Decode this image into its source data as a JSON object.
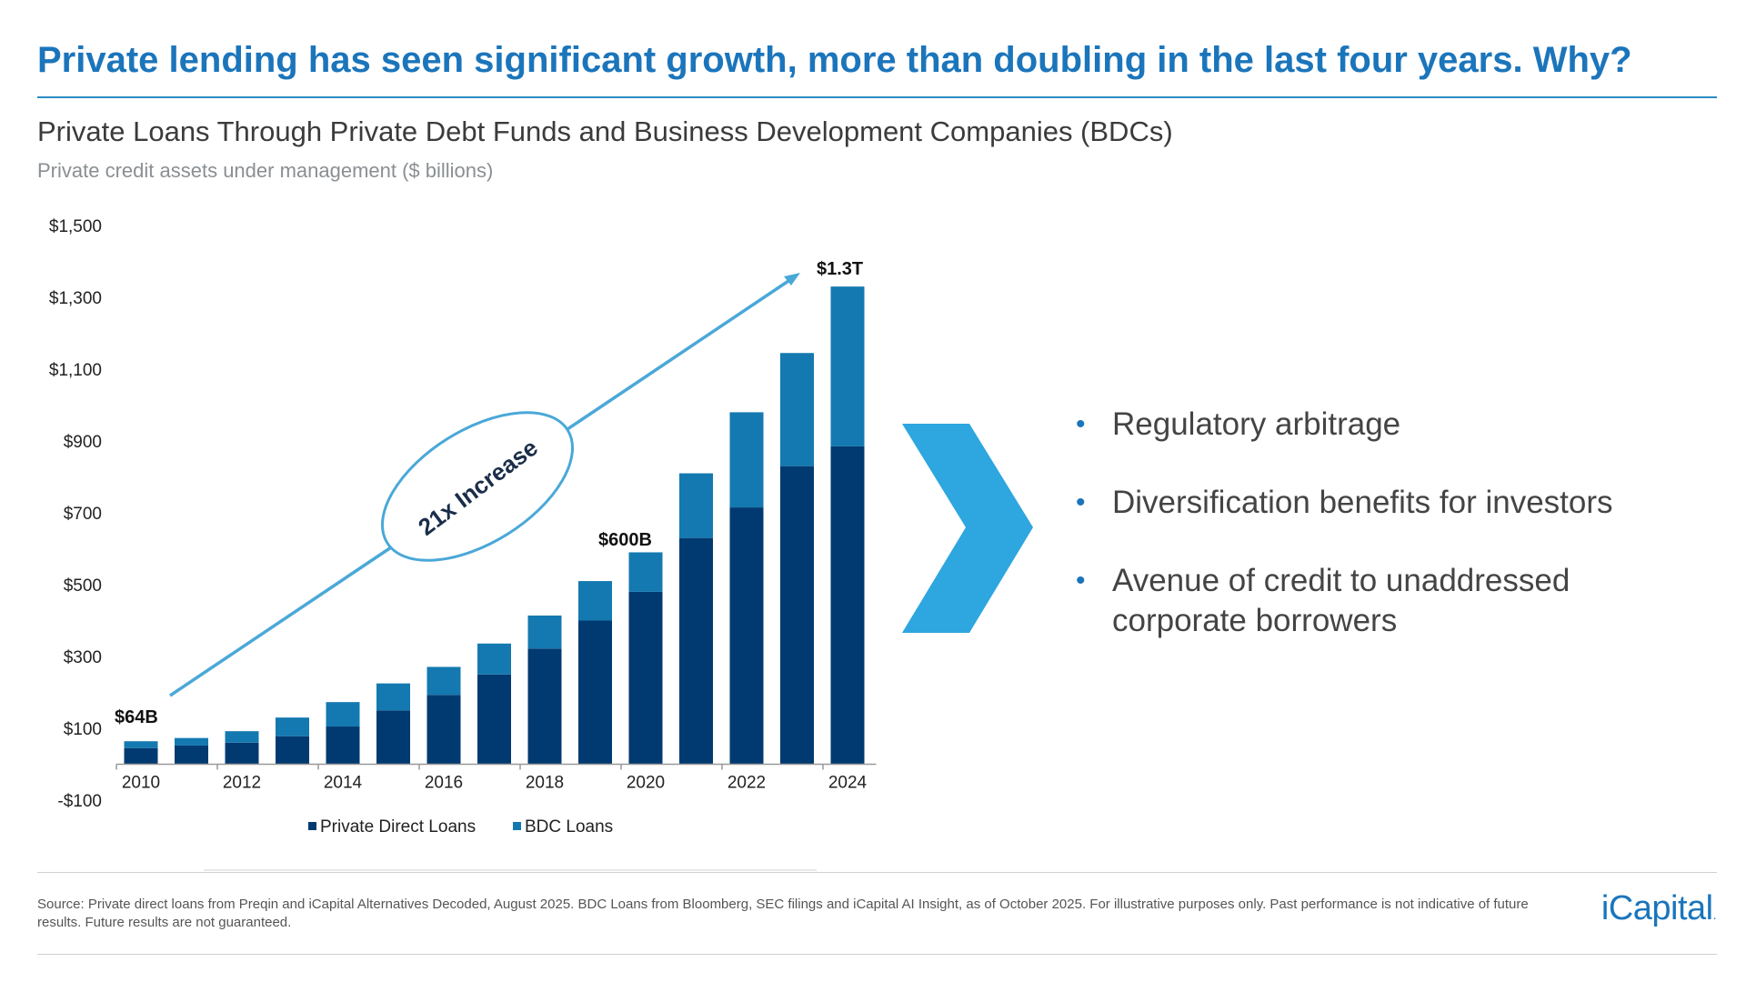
{
  "headline": "Private lending has seen significant growth, more than doubling in the last four years. Why?",
  "subtitle": "Private Loans Through Private Debt Funds and Business Development Companies (BDCs)",
  "unit_caption": "Private credit assets under management ($ billions)",
  "annotations": {
    "start_label": "$64B",
    "mid_label": "$600B",
    "end_label": "$1.3T",
    "growth_label": "21x Increase"
  },
  "bullets": [
    "Regulatory arbitrage",
    "Diversification benefits for investors",
    "Avenue of credit to unaddressed corporate borrowers"
  ],
  "footer_note": "Source: Private direct loans from Preqin and iCapital Alternatives Decoded, August 2025. BDC Loans from Bloomberg, SEC filings and iCapital AI Insight, as of October 2025. For illustrative purposes only. Past performance is not indicative of future results. Future results are not guaranteed.",
  "brand": "iCapital",
  "brand_mark": ".",
  "colors": {
    "headline": "#1b75bb",
    "private_direct": "#003a70",
    "bdc": "#1479b0",
    "arrow": "#4aa8d8",
    "chevron": "#2ea6df"
  },
  "chart_data": {
    "type": "bar",
    "stacked": true,
    "categories": [
      "2010",
      "2011",
      "2012",
      "2013",
      "2014",
      "2015",
      "2016",
      "2017",
      "2018",
      "2019",
      "2020",
      "2021",
      "2022",
      "2023",
      "2024"
    ],
    "tick_labels": [
      "2010",
      "",
      "2012",
      "",
      "2014",
      "",
      "2016",
      "",
      "2018",
      "",
      "2020",
      "",
      "2022",
      "",
      "2024"
    ],
    "series": [
      {
        "name": "Private Direct Loans",
        "color": "#003a70",
        "values": [
          45,
          52,
          60,
          78,
          105,
          150,
          193,
          250,
          322,
          400,
          480,
          630,
          715,
          830,
          885
        ]
      },
      {
        "name": "BDC Loans",
        "color": "#1479b0",
        "values": [
          19,
          21,
          32,
          52,
          68,
          75,
          78,
          86,
          92,
          110,
          110,
          180,
          265,
          315,
          445
        ]
      }
    ],
    "y_ticks": [
      "$1,500",
      "$1,300",
      "$1,100",
      "$900",
      "$700",
      "$500",
      "$300",
      "$100",
      "-$100"
    ],
    "y_tick_values": [
      1500,
      1300,
      1100,
      900,
      700,
      500,
      300,
      100,
      -100
    ],
    "ylim": [
      -100,
      1500
    ],
    "grid": false,
    "legend_position": "bottom"
  }
}
